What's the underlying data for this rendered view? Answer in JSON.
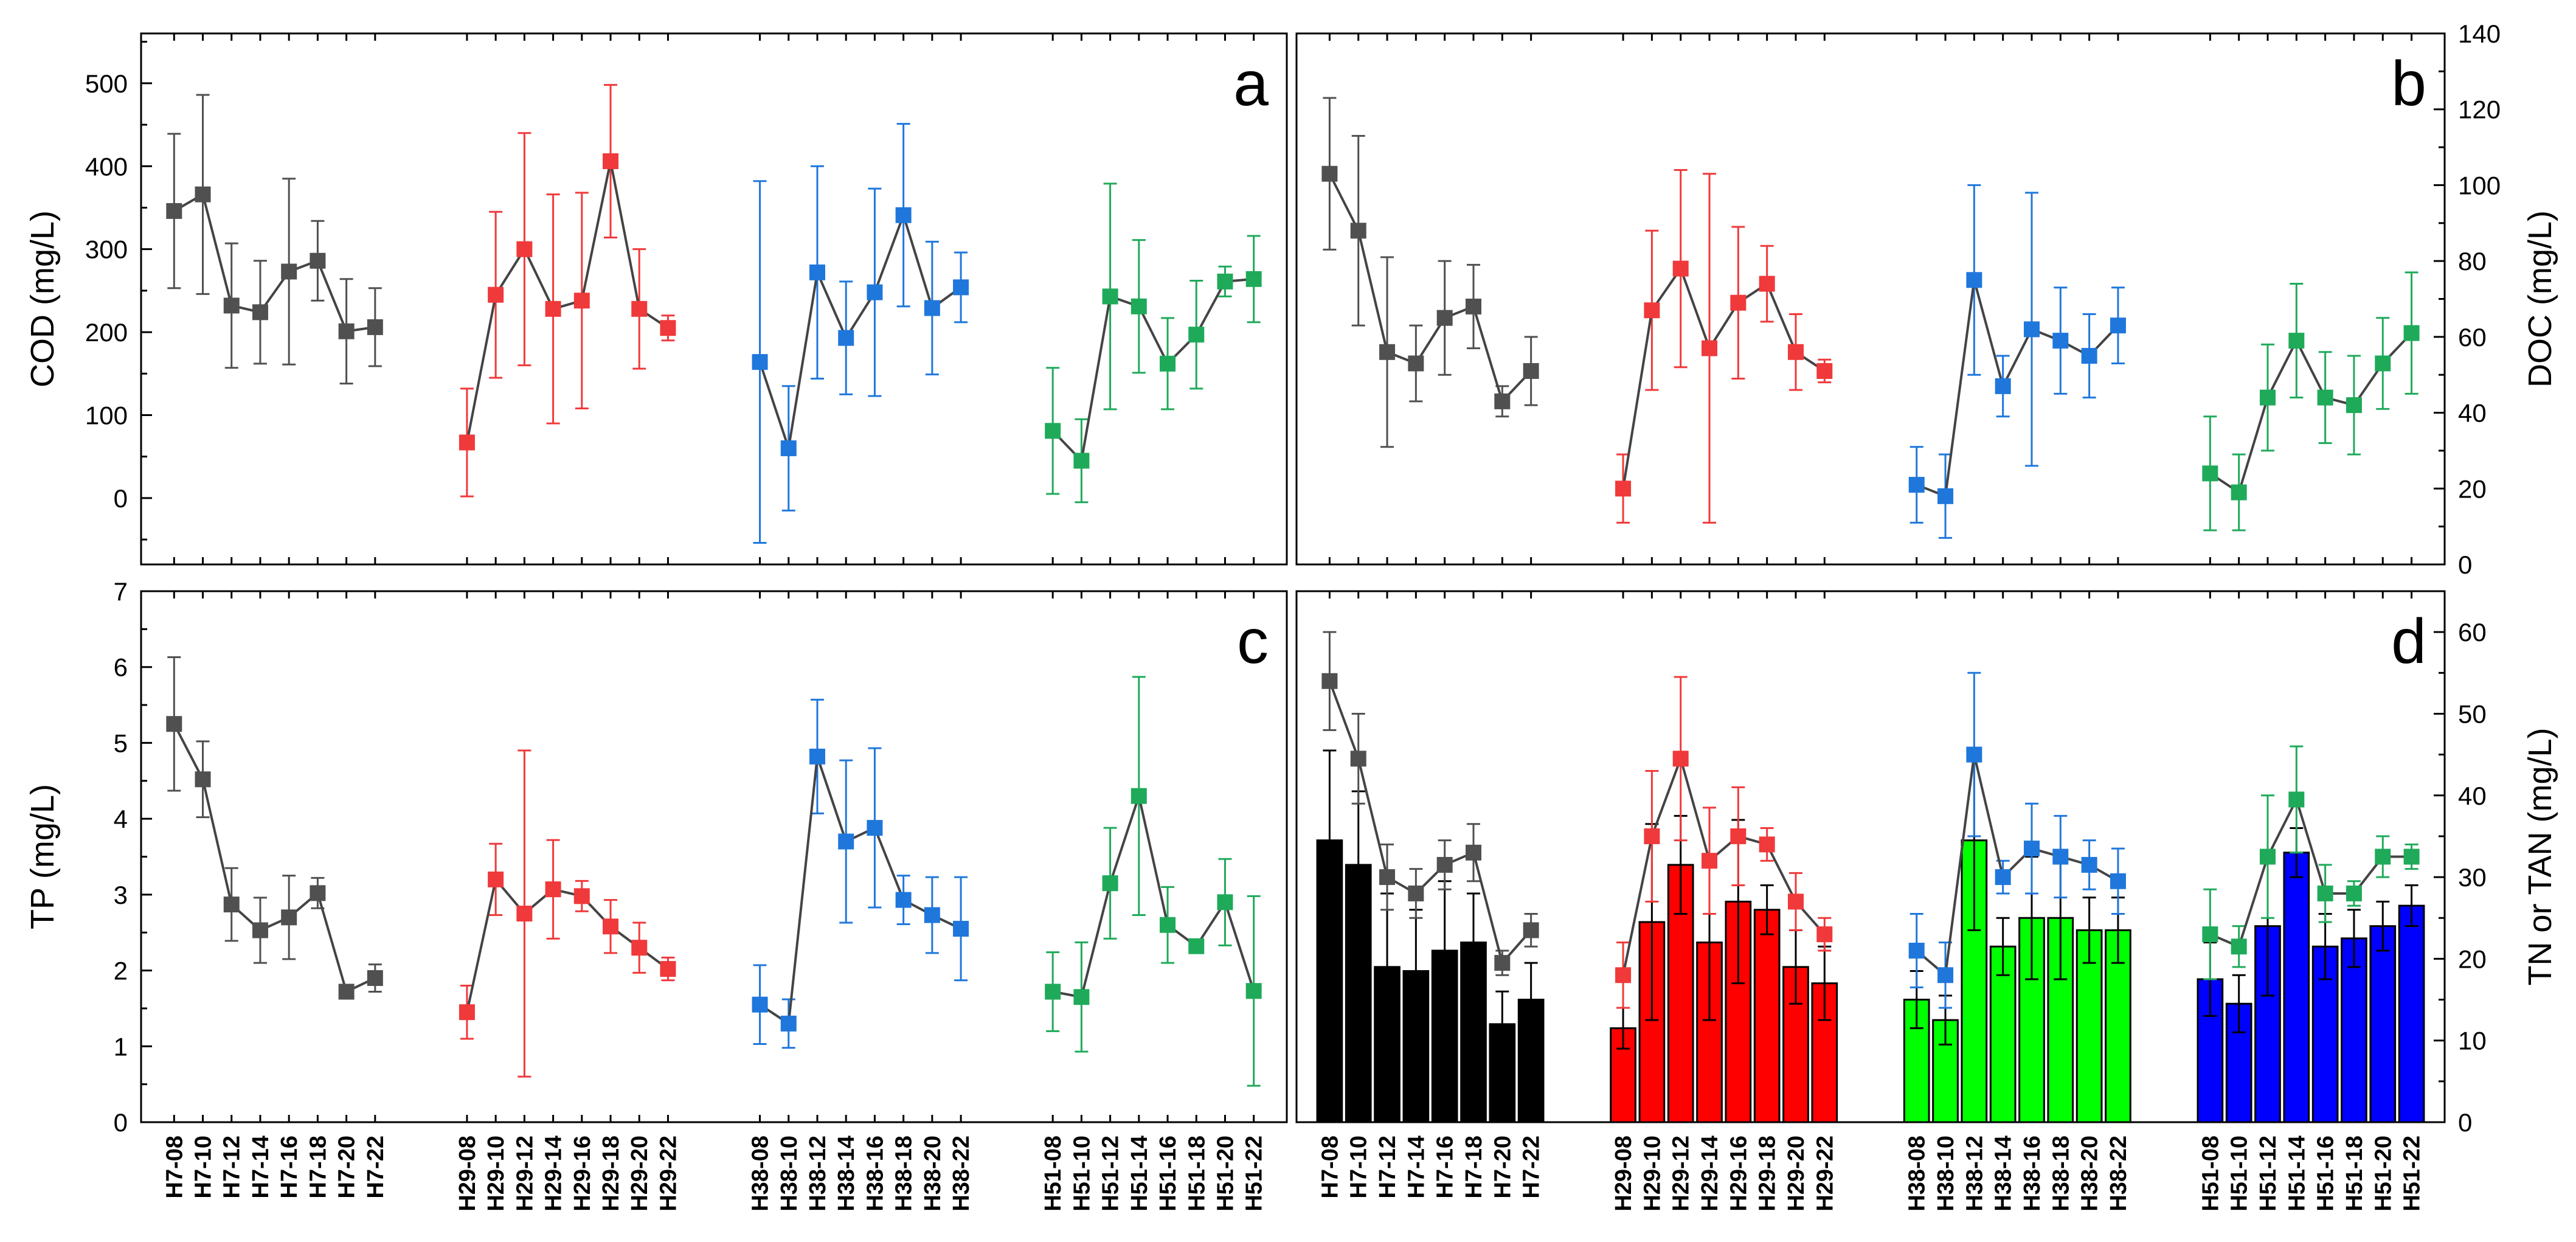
{
  "categories": [
    "H7-08",
    "H7-10",
    "H7-12",
    "H7-14",
    "H7-16",
    "H7-18",
    "H7-20",
    "H7-22",
    "H29-08",
    "H29-10",
    "H29-12",
    "H29-14",
    "H29-16",
    "H29-18",
    "H29-20",
    "H29-22",
    "H38-08",
    "H38-10",
    "H38-12",
    "H38-14",
    "H38-16",
    "H38-18",
    "H38-20",
    "H38-22",
    "H51-08",
    "H51-10",
    "H51-12",
    "H51-14",
    "H51-16",
    "H51-18",
    "H51-20",
    "H51-22"
  ],
  "colors": {
    "H7": "#505050",
    "H29": "#f0393a",
    "H38": "#1f77dc",
    "H51": "#1faa5a",
    "bar_H7": "#000000",
    "bar_H29": "#ff0000",
    "bar_H38": "#00ff00",
    "bar_H51": "#0000ff",
    "connector": "#444444"
  },
  "chart_data": [
    {
      "panel": "a",
      "type": "line",
      "ylabel": "COD (mg/L)",
      "ylim": [
        -80,
        560
      ],
      "yticks": [
        0,
        100,
        200,
        300,
        400,
        500
      ],
      "series": [
        {
          "group": "H7",
          "values": [
            346,
            366,
            232,
            224,
            273,
            286,
            201,
            206
          ],
          "err": [
            93,
            120,
            75,
            62,
            112,
            48,
            63,
            47
          ]
        },
        {
          "group": "H29",
          "values": [
            67,
            245,
            300,
            228,
            238,
            406,
            228,
            205
          ],
          "err": [
            65,
            100,
            140,
            138,
            130,
            92,
            72,
            15
          ]
        },
        {
          "group": "H38",
          "values": [
            164,
            60,
            272,
            193,
            248,
            341,
            229,
            254
          ],
          "err": [
            218,
            75,
            128,
            68,
            125,
            110,
            80,
            42
          ]
        },
        {
          "group": "H51",
          "values": [
            81,
            45,
            243,
            231,
            162,
            197,
            261,
            264
          ],
          "err": [
            76,
            50,
            136,
            80,
            55,
            65,
            18,
            52
          ]
        }
      ]
    },
    {
      "panel": "b",
      "type": "line",
      "ylabel": "DOC (mg/L)",
      "ylim": [
        0,
        140
      ],
      "yticks": [
        0,
        20,
        40,
        60,
        80,
        100,
        120,
        140
      ],
      "series": [
        {
          "group": "H7",
          "values": [
            103,
            88,
            56,
            53,
            65,
            68,
            43,
            51
          ],
          "err": [
            20,
            25,
            25,
            10,
            15,
            11,
            4,
            9
          ]
        },
        {
          "group": "H29",
          "values": [
            20,
            67,
            78,
            57,
            69,
            74,
            56,
            51
          ],
          "err": [
            9,
            21,
            26,
            46,
            20,
            10,
            10,
            3
          ]
        },
        {
          "group": "H38",
          "values": [
            21,
            18,
            75,
            47,
            62,
            59,
            55,
            63
          ],
          "err": [
            10,
            11,
            25,
            8,
            36,
            14,
            11,
            10
          ]
        },
        {
          "group": "H51",
          "values": [
            24,
            19,
            44,
            59,
            44,
            42,
            53,
            61
          ],
          "err": [
            15,
            10,
            14,
            15,
            12,
            13,
            12,
            16
          ]
        }
      ]
    },
    {
      "panel": "c",
      "type": "line",
      "ylabel": "TP (mg/L)",
      "ylim": [
        0,
        7
      ],
      "yticks": [
        0,
        1,
        2,
        3,
        4,
        5,
        6,
        7
      ],
      "series": [
        {
          "group": "H7",
          "values": [
            5.25,
            4.52,
            2.87,
            2.53,
            2.7,
            3.02,
            1.72,
            1.9
          ],
          "err": [
            0.88,
            0.5,
            0.48,
            0.43,
            0.55,
            0.2,
            0.05,
            0.18
          ]
        },
        {
          "group": "H29",
          "values": [
            1.45,
            3.2,
            2.75,
            3.07,
            2.98,
            2.58,
            2.3,
            2.02
          ],
          "err": [
            0.35,
            0.47,
            2.15,
            0.65,
            0.2,
            0.35,
            0.33,
            0.15
          ]
        },
        {
          "group": "H38",
          "values": [
            1.55,
            1.3,
            4.82,
            3.7,
            3.88,
            2.93,
            2.73,
            2.55
          ],
          "err": [
            0.52,
            0.32,
            0.75,
            1.07,
            1.05,
            0.32,
            0.5,
            0.68
          ]
        },
        {
          "group": "H51",
          "values": [
            1.72,
            1.65,
            3.15,
            4.3,
            2.6,
            2.32,
            2.9,
            1.73
          ],
          "err": [
            0.52,
            0.72,
            0.73,
            1.57,
            0.5,
            0.05,
            0.57,
            1.25
          ]
        }
      ]
    },
    {
      "panel": "d",
      "type": "bar+line",
      "ylabel": "TN or TAN (mg/L)",
      "ylim": [
        0,
        65
      ],
      "yticks": [
        0,
        10,
        20,
        30,
        40,
        50,
        60
      ],
      "line_series": [
        {
          "group": "H7",
          "values": [
            54,
            44.5,
            30,
            28,
            31.5,
            33,
            19.5,
            23.5
          ],
          "err": [
            6,
            5.5,
            4,
            3,
            3,
            3.5,
            1.5,
            2
          ]
        },
        {
          "group": "H29",
          "values": [
            18,
            35,
            44.5,
            32,
            35,
            34,
            27,
            23
          ],
          "err": [
            4,
            8,
            10,
            6.5,
            6,
            2,
            3.5,
            2
          ]
        },
        {
          "group": "H38",
          "values": [
            21,
            18,
            45,
            30,
            33.5,
            32.5,
            31.5,
            29.5
          ],
          "err": [
            4.5,
            4,
            10,
            2,
            5.5,
            5,
            3,
            4
          ]
        },
        {
          "group": "H51",
          "values": [
            23,
            21.5,
            32.5,
            39.5,
            28,
            28,
            32.5,
            32.5
          ],
          "err": [
            5.5,
            2.5,
            7.5,
            6.5,
            3.5,
            1.5,
            2.5,
            1.5
          ]
        }
      ],
      "bar_series": [
        {
          "group": "H7",
          "values": [
            34.5,
            31.5,
            19,
            18.5,
            21,
            22,
            12,
            15
          ],
          "err": [
            11,
            9,
            9,
            7.5,
            8.5,
            6,
            4,
            4.5
          ]
        },
        {
          "group": "H29",
          "values": [
            11.5,
            24.5,
            31.5,
            22,
            27,
            26,
            19,
            17
          ],
          "err": [
            2.5,
            12,
            6,
            9.5,
            10,
            3,
            4.5,
            4.5
          ]
        },
        {
          "group": "H38",
          "values": [
            15,
            12.5,
            34.5,
            21.5,
            25,
            25,
            23.5,
            23.5
          ],
          "err": [
            3.5,
            3,
            11,
            3.5,
            7.5,
            7.5,
            4,
            4
          ]
        },
        {
          "group": "H51",
          "values": [
            17.5,
            14.5,
            24,
            33,
            21.5,
            22.5,
            24,
            26.5
          ],
          "err": [
            4.5,
            3.5,
            8.5,
            3,
            4,
            3.5,
            3,
            2.5
          ]
        }
      ]
    }
  ]
}
